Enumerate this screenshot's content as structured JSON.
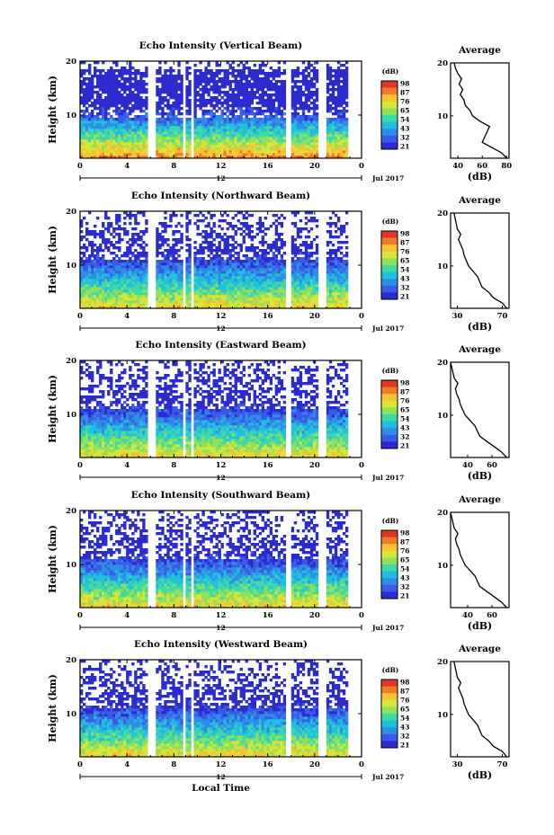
{
  "chart_data": [
    {
      "type": "heatmap",
      "title": "Echo Intensity (Vertical Beam)",
      "ylabel": "Height (km)",
      "ylim": [
        2,
        20
      ],
      "xlim": [
        0,
        24
      ],
      "x_ticks": [
        "0",
        "4",
        "8",
        "12",
        "16",
        "20",
        "0"
      ],
      "y_ticks": [
        "10",
        "20"
      ],
      "date_label": "12",
      "month_label": "Jul 2017",
      "colorbar": {
        "unit": "(dB)",
        "ticks": [
          "98",
          "87",
          "76",
          "65",
          "54",
          "43",
          "32",
          "21"
        ]
      },
      "average": {
        "title": "Average",
        "xlabel": "(dB)",
        "x_ticks": [
          "40",
          "60",
          "80"
        ],
        "xlim": [
          34,
          82
        ],
        "y_ticks": [
          "10",
          "20"
        ],
        "profile": {
          "height_km": [
            2,
            3,
            4,
            5,
            6,
            7,
            8,
            9,
            10,
            11,
            12,
            13,
            14,
            15,
            16,
            17,
            18,
            19,
            20
          ],
          "db": [
            80,
            76,
            68,
            60,
            62,
            64,
            66,
            58,
            52,
            50,
            46,
            45,
            42,
            44,
            41,
            43,
            40,
            38,
            37
          ]
        }
      },
      "gaps_hours": [
        [
          5.8,
          6.4
        ],
        [
          8.8,
          9.1
        ],
        [
          9.4,
          9.8
        ],
        [
          17.6,
          17.9
        ],
        [
          20.4,
          20.9
        ]
      ]
    },
    {
      "type": "heatmap",
      "title": "Echo Intensity (Northward Beam)",
      "ylabel": "Height (km)",
      "ylim": [
        2,
        20
      ],
      "xlim": [
        0,
        24
      ],
      "x_ticks": [
        "0",
        "4",
        "8",
        "12",
        "16",
        "20",
        "0"
      ],
      "y_ticks": [
        "10",
        "20"
      ],
      "date_label": "12",
      "month_label": "Jul 2017",
      "colorbar": {
        "unit": "(dB)",
        "ticks": [
          "98",
          "87",
          "76",
          "65",
          "54",
          "43",
          "32",
          "21"
        ]
      },
      "average": {
        "title": "Average",
        "xlabel": "(dB)",
        "x_ticks": [
          "30",
          "70"
        ],
        "xlim": [
          24,
          76
        ],
        "y_ticks": [
          "10",
          "20"
        ],
        "profile": {
          "height_km": [
            2,
            3,
            4,
            5,
            6,
            7,
            8,
            9,
            10,
            11,
            12,
            13,
            14,
            15,
            16,
            17,
            18,
            19,
            20
          ],
          "db": [
            74,
            70,
            62,
            58,
            52,
            50,
            48,
            44,
            40,
            38,
            36,
            35,
            33,
            31,
            33,
            30,
            29,
            28,
            27
          ]
        }
      },
      "gaps_hours": [
        [
          5.8,
          6.4
        ],
        [
          8.8,
          9.1
        ],
        [
          9.4,
          9.8
        ],
        [
          17.6,
          17.9
        ],
        [
          20.4,
          20.9
        ]
      ]
    },
    {
      "type": "heatmap",
      "title": "Echo Intensity (Eastward Beam)",
      "ylabel": "Height (km)",
      "ylim": [
        2,
        20
      ],
      "xlim": [
        0,
        24
      ],
      "x_ticks": [
        "0",
        "4",
        "8",
        "12",
        "16",
        "20",
        "0"
      ],
      "y_ticks": [
        "10",
        "20"
      ],
      "date_label": "12",
      "month_label": "Jul 2017",
      "colorbar": {
        "unit": "(dB)",
        "ticks": [
          "98",
          "87",
          "76",
          "65",
          "54",
          "43",
          "32",
          "21"
        ]
      },
      "average": {
        "title": "Average",
        "xlabel": "(dB)",
        "x_ticks": [
          "40",
          "60"
        ],
        "xlim": [
          26,
          74
        ],
        "y_ticks": [
          "10",
          "20"
        ],
        "profile": {
          "height_km": [
            2,
            3,
            4,
            5,
            6,
            7,
            8,
            9,
            10,
            11,
            12,
            13,
            14,
            15,
            16,
            17,
            18,
            19,
            20
          ],
          "db": [
            72,
            68,
            62,
            56,
            50,
            48,
            46,
            42,
            38,
            36,
            34,
            33,
            31,
            30,
            32,
            29,
            28,
            27,
            26
          ]
        }
      },
      "gaps_hours": [
        [
          5.8,
          6.4
        ],
        [
          8.8,
          9.1
        ],
        [
          9.4,
          9.8
        ],
        [
          17.6,
          17.9
        ],
        [
          20.4,
          20.9
        ]
      ]
    },
    {
      "type": "heatmap",
      "title": "Echo Intensity (Southward Beam)",
      "ylabel": "Height (km)",
      "ylim": [
        2,
        20
      ],
      "xlim": [
        0,
        24
      ],
      "x_ticks": [
        "0",
        "4",
        "8",
        "12",
        "16",
        "20",
        "0"
      ],
      "y_ticks": [
        "10",
        "20"
      ],
      "date_label": "12",
      "month_label": "Jul 2017",
      "colorbar": {
        "unit": "(dB)",
        "ticks": [
          "98",
          "87",
          "76",
          "65",
          "54",
          "43",
          "32",
          "21"
        ]
      },
      "average": {
        "title": "Average",
        "xlabel": "(dB)",
        "x_ticks": [
          "40",
          "60"
        ],
        "xlim": [
          26,
          74
        ],
        "y_ticks": [
          "10",
          "20"
        ],
        "profile": {
          "height_km": [
            2,
            3,
            4,
            5,
            6,
            7,
            8,
            9,
            10,
            11,
            12,
            13,
            14,
            15,
            16,
            17,
            18,
            19,
            20
          ],
          "db": [
            72,
            68,
            62,
            56,
            50,
            48,
            46,
            42,
            38,
            36,
            34,
            33,
            31,
            30,
            32,
            29,
            28,
            27,
            26
          ]
        }
      },
      "gaps_hours": [
        [
          5.8,
          6.4
        ],
        [
          8.8,
          9.1
        ],
        [
          9.4,
          9.8
        ],
        [
          17.6,
          17.9
        ],
        [
          20.4,
          20.9
        ]
      ]
    },
    {
      "type": "heatmap",
      "title": "Echo Intensity (Westward Beam)",
      "ylabel": "Height (km)",
      "xlabel": "Local Time",
      "ylim": [
        2,
        20
      ],
      "xlim": [
        0,
        24
      ],
      "x_ticks": [
        "0",
        "4",
        "8",
        "12",
        "16",
        "20",
        "0"
      ],
      "y_ticks": [
        "10",
        "20"
      ],
      "date_label": "12",
      "month_label": "Jul 2017",
      "colorbar": {
        "unit": "(dB)",
        "ticks": [
          "98",
          "87",
          "76",
          "65",
          "54",
          "43",
          "32",
          "21"
        ]
      },
      "average": {
        "title": "Average",
        "xlabel": "(dB)",
        "x_ticks": [
          "30",
          "70"
        ],
        "xlim": [
          24,
          76
        ],
        "y_ticks": [
          "10",
          "20"
        ],
        "profile": {
          "height_km": [
            2,
            3,
            4,
            5,
            6,
            7,
            8,
            9,
            10,
            11,
            12,
            13,
            14,
            15,
            16,
            17,
            18,
            19,
            20
          ],
          "db": [
            74,
            70,
            62,
            58,
            52,
            50,
            48,
            44,
            40,
            38,
            36,
            35,
            33,
            31,
            33,
            30,
            29,
            28,
            27
          ]
        }
      },
      "gaps_hours": [
        [
          5.8,
          6.4
        ],
        [
          8.8,
          9.1
        ],
        [
          9.4,
          9.8
        ],
        [
          17.6,
          17.9
        ],
        [
          20.4,
          20.9
        ]
      ]
    }
  ],
  "colors": {
    "colormap": [
      "#2b2bcf",
      "#3a5ae8",
      "#2f8de6",
      "#1fc0de",
      "#3fd8a6",
      "#8fe05a",
      "#d8e63a",
      "#f7c334",
      "#f07a2a",
      "#e03626"
    ]
  }
}
